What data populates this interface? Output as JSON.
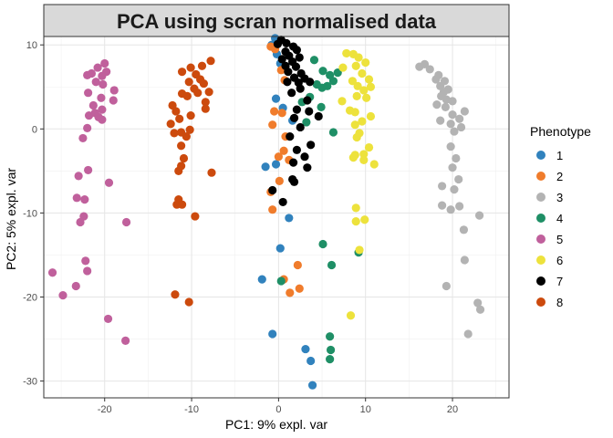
{
  "chart_data": {
    "type": "scatter",
    "title": "PCA using scran normalised data",
    "xlabel": "PC1: 9% expl. var",
    "ylabel": "PC2: 5% expl. var",
    "xlim": [
      -27,
      26.5
    ],
    "ylim": [
      -32,
      11
    ],
    "xticks": [
      -20,
      -10,
      0,
      10,
      20
    ],
    "yticks": [
      -30,
      -20,
      -10,
      0,
      10
    ],
    "xtick_labels": [
      "-20",
      "-10",
      "0",
      "10",
      "20"
    ],
    "ytick_labels": [
      "-30",
      "-20",
      "-10",
      "0",
      "10"
    ],
    "grid": true,
    "legend_title": "Phenotype",
    "legend_position": "right",
    "series": [
      {
        "name": "1",
        "color": "#3182bd",
        "points": [
          [
            -0.4,
            10.8
          ],
          [
            -0.8,
            10.0
          ],
          [
            -0.2,
            8.9
          ],
          [
            0.2,
            7.8
          ],
          [
            -0.3,
            3.6
          ],
          [
            0.5,
            2.5
          ],
          [
            1.6,
            1.0
          ],
          [
            -1.5,
            -4.5
          ],
          [
            -0.3,
            -4.2
          ],
          [
            0.2,
            -14.2
          ],
          [
            1.2,
            -10.6
          ],
          [
            -1.9,
            -17.9
          ],
          [
            -0.7,
            -24.4
          ],
          [
            3.1,
            -26.2
          ],
          [
            3.7,
            -27.6
          ],
          [
            3.9,
            -30.5
          ]
        ]
      },
      {
        "name": "2",
        "color": "#f07c2c",
        "points": [
          [
            -0.9,
            9.8
          ],
          [
            -0.4,
            9.5
          ],
          [
            0.3,
            7.0
          ],
          [
            0.7,
            5.8
          ],
          [
            -0.5,
            2.1
          ],
          [
            0.4,
            1.9
          ],
          [
            -0.7,
            0.5
          ],
          [
            0.8,
            -0.9
          ],
          [
            0.6,
            -2.6
          ],
          [
            0.0,
            -3.3
          ],
          [
            1.2,
            -3.7
          ],
          [
            0.1,
            -6.2
          ],
          [
            -0.9,
            -7.5
          ],
          [
            -0.7,
            -9.6
          ],
          [
            2.2,
            -16.2
          ],
          [
            0.6,
            -17.9
          ],
          [
            2.4,
            -19.0
          ],
          [
            1.3,
            -19.5
          ]
        ]
      },
      {
        "name": "3",
        "color": "#b3b3b3",
        "points": [
          [
            16.2,
            7.4
          ],
          [
            16.8,
            7.7
          ],
          [
            17.4,
            7.1
          ],
          [
            18.4,
            6.4
          ],
          [
            18.1,
            5.9
          ],
          [
            19.1,
            5.7
          ],
          [
            18.6,
            5.1
          ],
          [
            19.5,
            4.7
          ],
          [
            19.0,
            4.4
          ],
          [
            18.7,
            3.9
          ],
          [
            19.3,
            3.5
          ],
          [
            20.0,
            3.3
          ],
          [
            18.2,
            2.9
          ],
          [
            19.2,
            2.6
          ],
          [
            20.0,
            1.7
          ],
          [
            20.8,
            1.2
          ],
          [
            21.4,
            2.1
          ],
          [
            18.6,
            1.0
          ],
          [
            19.8,
            0.6
          ],
          [
            21.0,
            0.2
          ],
          [
            20.2,
            -0.3
          ],
          [
            19.8,
            -2.1
          ],
          [
            20.4,
            -3.5
          ],
          [
            20.0,
            -4.6
          ],
          [
            20.7,
            -6.0
          ],
          [
            18.8,
            -6.8
          ],
          [
            20.2,
            -7.2
          ],
          [
            18.8,
            -9.1
          ],
          [
            19.8,
            -9.6
          ],
          [
            20.8,
            -9.2
          ],
          [
            23.1,
            -10.3
          ],
          [
            21.3,
            -12.0
          ],
          [
            21.4,
            -15.6
          ],
          [
            19.3,
            -18.7
          ],
          [
            22.9,
            -20.7
          ],
          [
            23.2,
            -21.5
          ],
          [
            21.8,
            -24.4
          ]
        ]
      },
      {
        "name": "4",
        "color": "#1f8f66",
        "points": [
          [
            4.1,
            8.2
          ],
          [
            5.1,
            6.9
          ],
          [
            5.9,
            6.4
          ],
          [
            6.8,
            6.7
          ],
          [
            6.3,
            5.7
          ],
          [
            4.4,
            5.3
          ],
          [
            5.0,
            4.9
          ],
          [
            5.6,
            5.1
          ],
          [
            3.6,
            3.8
          ],
          [
            2.7,
            3.2
          ],
          [
            4.9,
            2.6
          ],
          [
            3.2,
            0.8
          ],
          [
            6.3,
            -0.4
          ],
          [
            5.1,
            -13.7
          ],
          [
            9.2,
            -14.7
          ],
          [
            6.1,
            -16.2
          ],
          [
            0.3,
            -18.1
          ],
          [
            5.9,
            -24.7
          ],
          [
            6.0,
            -26.3
          ],
          [
            5.9,
            -27.4
          ]
        ]
      },
      {
        "name": "5",
        "color": "#c0609c",
        "points": [
          [
            -20.0,
            7.8
          ],
          [
            -20.8,
            7.3
          ],
          [
            -21.5,
            6.6
          ],
          [
            -19.8,
            6.8
          ],
          [
            -22.0,
            6.4
          ],
          [
            -20.3,
            6.3
          ],
          [
            -21.0,
            5.6
          ],
          [
            -20.2,
            5.3
          ],
          [
            -21.9,
            4.3
          ],
          [
            -18.9,
            4.6
          ],
          [
            -20.4,
            3.7
          ],
          [
            -21.3,
            2.8
          ],
          [
            -20.3,
            2.3
          ],
          [
            -19.0,
            3.4
          ],
          [
            -21.1,
            1.9
          ],
          [
            -20.7,
            1.4
          ],
          [
            -21.8,
            1.6
          ],
          [
            -20.3,
            1.1
          ],
          [
            -22.0,
            0.1
          ],
          [
            -22.5,
            -1.1
          ],
          [
            -23.0,
            -5.6
          ],
          [
            -21.9,
            -4.9
          ],
          [
            -19.5,
            -6.4
          ],
          [
            -23.2,
            -8.2
          ],
          [
            -22.3,
            -8.4
          ],
          [
            -22.4,
            -10.4
          ],
          [
            -22.8,
            -11.1
          ],
          [
            -17.5,
            -11.1
          ],
          [
            -22.2,
            -15.7
          ],
          [
            -22.0,
            -16.9
          ],
          [
            -26.0,
            -17.1
          ],
          [
            -23.3,
            -18.7
          ],
          [
            -24.8,
            -19.8
          ],
          [
            -19.6,
            -22.6
          ],
          [
            -17.6,
            -25.2
          ]
        ]
      },
      {
        "name": "6",
        "color": "#ede23c",
        "points": [
          [
            7.8,
            9.0
          ],
          [
            8.6,
            8.9
          ],
          [
            9.2,
            8.5
          ],
          [
            10.0,
            7.9
          ],
          [
            7.4,
            7.3
          ],
          [
            8.9,
            7.5
          ],
          [
            9.6,
            6.6
          ],
          [
            10.4,
            5.9
          ],
          [
            8.5,
            5.7
          ],
          [
            9.1,
            5.1
          ],
          [
            9.8,
            4.6
          ],
          [
            10.6,
            5.0
          ],
          [
            9.0,
            3.9
          ],
          [
            10.1,
            3.7
          ],
          [
            7.3,
            3.3
          ],
          [
            8.2,
            2.2
          ],
          [
            8.8,
            2.0
          ],
          [
            10.6,
            1.5
          ],
          [
            9.6,
            0.9
          ],
          [
            8.8,
            0.5
          ],
          [
            9.3,
            -0.5
          ],
          [
            9.0,
            -1.0
          ],
          [
            10.4,
            -2.2
          ],
          [
            9.8,
            -3.0
          ],
          [
            8.8,
            -3.1
          ],
          [
            9.8,
            -3.7
          ],
          [
            8.6,
            -3.4
          ],
          [
            11.0,
            -4.2
          ],
          [
            8.9,
            -9.4
          ],
          [
            9.9,
            -10.8
          ],
          [
            8.9,
            -11.0
          ],
          [
            9.3,
            -14.4
          ],
          [
            8.3,
            -22.2
          ]
        ]
      },
      {
        "name": "7",
        "color": "#000000",
        "points": [
          [
            0.3,
            10.6
          ],
          [
            -0.1,
            10.1
          ],
          [
            0.9,
            10.2
          ],
          [
            1.7,
            9.8
          ],
          [
            0.8,
            9.2
          ],
          [
            2.1,
            9.4
          ],
          [
            1.2,
            8.7
          ],
          [
            2.4,
            8.5
          ],
          [
            0.4,
            8.3
          ],
          [
            1.6,
            8.0
          ],
          [
            0.8,
            7.5
          ],
          [
            2.0,
            7.4
          ],
          [
            1.1,
            6.8
          ],
          [
            2.6,
            6.6
          ],
          [
            1.8,
            6.1
          ],
          [
            3.0,
            6.0
          ],
          [
            1.0,
            5.6
          ],
          [
            2.3,
            5.5
          ],
          [
            3.6,
            5.6
          ],
          [
            2.5,
            4.8
          ],
          [
            1.5,
            4.3
          ],
          [
            3.3,
            3.4
          ],
          [
            2.1,
            2.3
          ],
          [
            3.5,
            2.1
          ],
          [
            1.8,
            1.3
          ],
          [
            4.6,
            1.5
          ],
          [
            2.5,
            0.2
          ],
          [
            1.3,
            -0.9
          ],
          [
            3.7,
            -1.9
          ],
          [
            2.1,
            -2.5
          ],
          [
            3.0,
            -3.3
          ],
          [
            1.7,
            -4.0
          ],
          [
            3.3,
            -4.6
          ],
          [
            1.6,
            -6.0
          ],
          [
            1.8,
            -6.3
          ],
          [
            -0.7,
            -7.3
          ],
          [
            0.5,
            -8.7
          ]
        ]
      },
      {
        "name": "8",
        "color": "#cc4a0d",
        "points": [
          [
            -7.8,
            8.1
          ],
          [
            -10.1,
            7.3
          ],
          [
            -8.8,
            7.5
          ],
          [
            -11.1,
            6.8
          ],
          [
            -9.5,
            6.5
          ],
          [
            -9.0,
            5.9
          ],
          [
            -10.3,
            5.6
          ],
          [
            -8.6,
            5.4
          ],
          [
            -9.7,
            4.8
          ],
          [
            -11.1,
            4.2
          ],
          [
            -9.3,
            4.3
          ],
          [
            -8.0,
            4.4
          ],
          [
            -10.5,
            3.9
          ],
          [
            -8.4,
            3.2
          ],
          [
            -12.2,
            2.8
          ],
          [
            -8.4,
            2.4
          ],
          [
            -11.8,
            2.1
          ],
          [
            -10.1,
            1.6
          ],
          [
            -11.4,
            1.2
          ],
          [
            -12.4,
            0.6
          ],
          [
            -10.2,
            -0.1
          ],
          [
            -11.2,
            -0.4
          ],
          [
            -12.0,
            -0.5
          ],
          [
            -10.6,
            -0.9
          ],
          [
            -11.2,
            -2.0
          ],
          [
            -10.9,
            -3.5
          ],
          [
            -11.2,
            -4.4
          ],
          [
            -11.5,
            -5.0
          ],
          [
            -7.7,
            -5.2
          ],
          [
            -11.5,
            -8.4
          ],
          [
            -11.7,
            -9.0
          ],
          [
            -11.1,
            -9.0
          ],
          [
            -9.6,
            -10.4
          ],
          [
            -11.9,
            -19.7
          ],
          [
            -10.3,
            -20.6
          ]
        ]
      }
    ]
  }
}
